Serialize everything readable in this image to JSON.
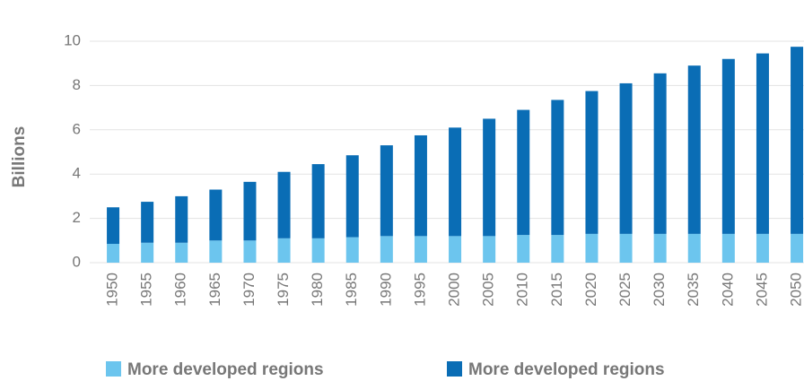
{
  "chart_data": {
    "type": "stacked-bar",
    "y_label": "Billions",
    "categories": [
      "1950",
      "1955",
      "1960",
      "1965",
      "1970",
      "1975",
      "1980",
      "1985",
      "1990",
      "1995",
      "2000",
      "2005",
      "2010",
      "2015",
      "2020",
      "2025",
      "2030",
      "2035",
      "2040",
      "2045",
      "2050"
    ],
    "series": [
      {
        "name": "More developed regions",
        "color": "#6cc5ee",
        "values": [
          0.85,
          0.9,
          0.9,
          1.0,
          1.0,
          1.1,
          1.1,
          1.15,
          1.2,
          1.2,
          1.2,
          1.2,
          1.25,
          1.25,
          1.3,
          1.3,
          1.3,
          1.3,
          1.3,
          1.3,
          1.3
        ]
      },
      {
        "name": "More developed regions",
        "color": "#0a6db5",
        "values": [
          1.65,
          1.85,
          2.1,
          2.3,
          2.65,
          3.0,
          3.35,
          3.7,
          4.1,
          4.55,
          4.9,
          5.3,
          5.65,
          6.1,
          6.45,
          6.8,
          7.25,
          7.6,
          7.9,
          8.15,
          8.45
        ]
      }
    ],
    "ylim": [
      0,
      10
    ],
    "yticks": [
      0,
      2,
      4,
      6,
      8,
      10
    ],
    "grid": true
  }
}
